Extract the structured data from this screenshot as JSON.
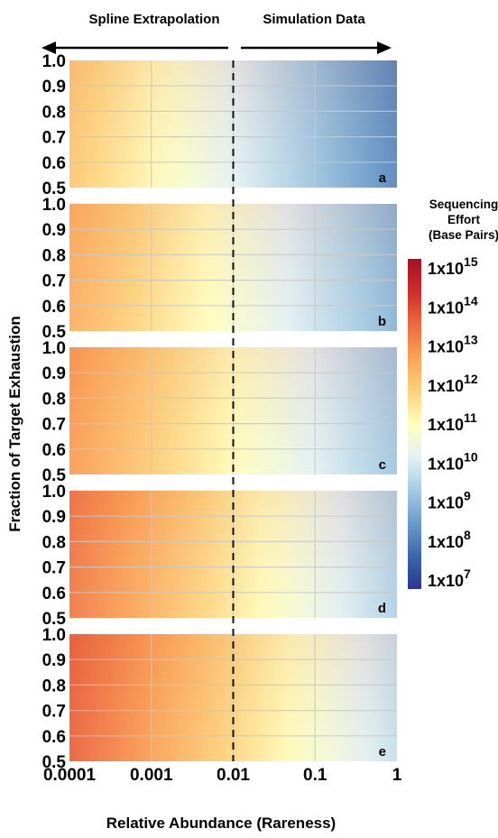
{
  "chart_data": {
    "type": "heatmap",
    "top_annotations": {
      "left": "Spline Extrapolation",
      "right": "Simulation Data"
    },
    "xlabel": "Relative Abundance (Rareness)",
    "ylabel": "Fraction of Target Exhaustion",
    "x_ticks": [
      "0.0001",
      "0.001",
      "0.01",
      "0.1",
      "1"
    ],
    "x_scale": "log",
    "xlim": [
      0.0001,
      1
    ],
    "y_ticks": [
      "1.0",
      "0.9",
      "0.8",
      "0.7",
      "0.6",
      "0.5"
    ],
    "ylim": [
      0.5,
      1.0
    ],
    "divider_x": 0.01,
    "grid": true,
    "colorbar": {
      "title_lines": [
        "Sequencing",
        "Effort",
        "(Base Pairs)"
      ],
      "tick_labels": [
        {
          "base": "1x10",
          "exp": "15"
        },
        {
          "base": "1x10",
          "exp": "14"
        },
        {
          "base": "1x10",
          "exp": "13"
        },
        {
          "base": "1x10",
          "exp": "12"
        },
        {
          "base": "1x10",
          "exp": "11"
        },
        {
          "base": "1x10",
          "exp": "10"
        },
        {
          "base": "1x10",
          "exp": "9"
        },
        {
          "base": "1x10",
          "exp": "8"
        },
        {
          "base": "1x10",
          "exp": "7"
        }
      ],
      "log10_range": [
        7,
        15
      ],
      "colors": [
        "#2c3590",
        "#3b67ad",
        "#6a9ccb",
        "#a6cce3",
        "#e4f1f3",
        "#ffffbe",
        "#fed27c",
        "#fba356",
        "#ee6a3f",
        "#cf2e2a",
        "#a50f27"
      ]
    },
    "panels": [
      {
        "label": "a",
        "log10_effort_left": 12.0,
        "log10_effort_right": 8.3
      },
      {
        "label": "b",
        "log10_effort_left": 12.4,
        "log10_effort_right": 9.0
      },
      {
        "label": "c",
        "log10_effort_left": 12.7,
        "log10_effort_right": 9.3
      },
      {
        "label": "d",
        "log10_effort_left": 13.2,
        "log10_effort_right": 9.5
      },
      {
        "label": "e",
        "log10_effort_left": 13.5,
        "log10_effort_right": 9.8
      }
    ]
  }
}
